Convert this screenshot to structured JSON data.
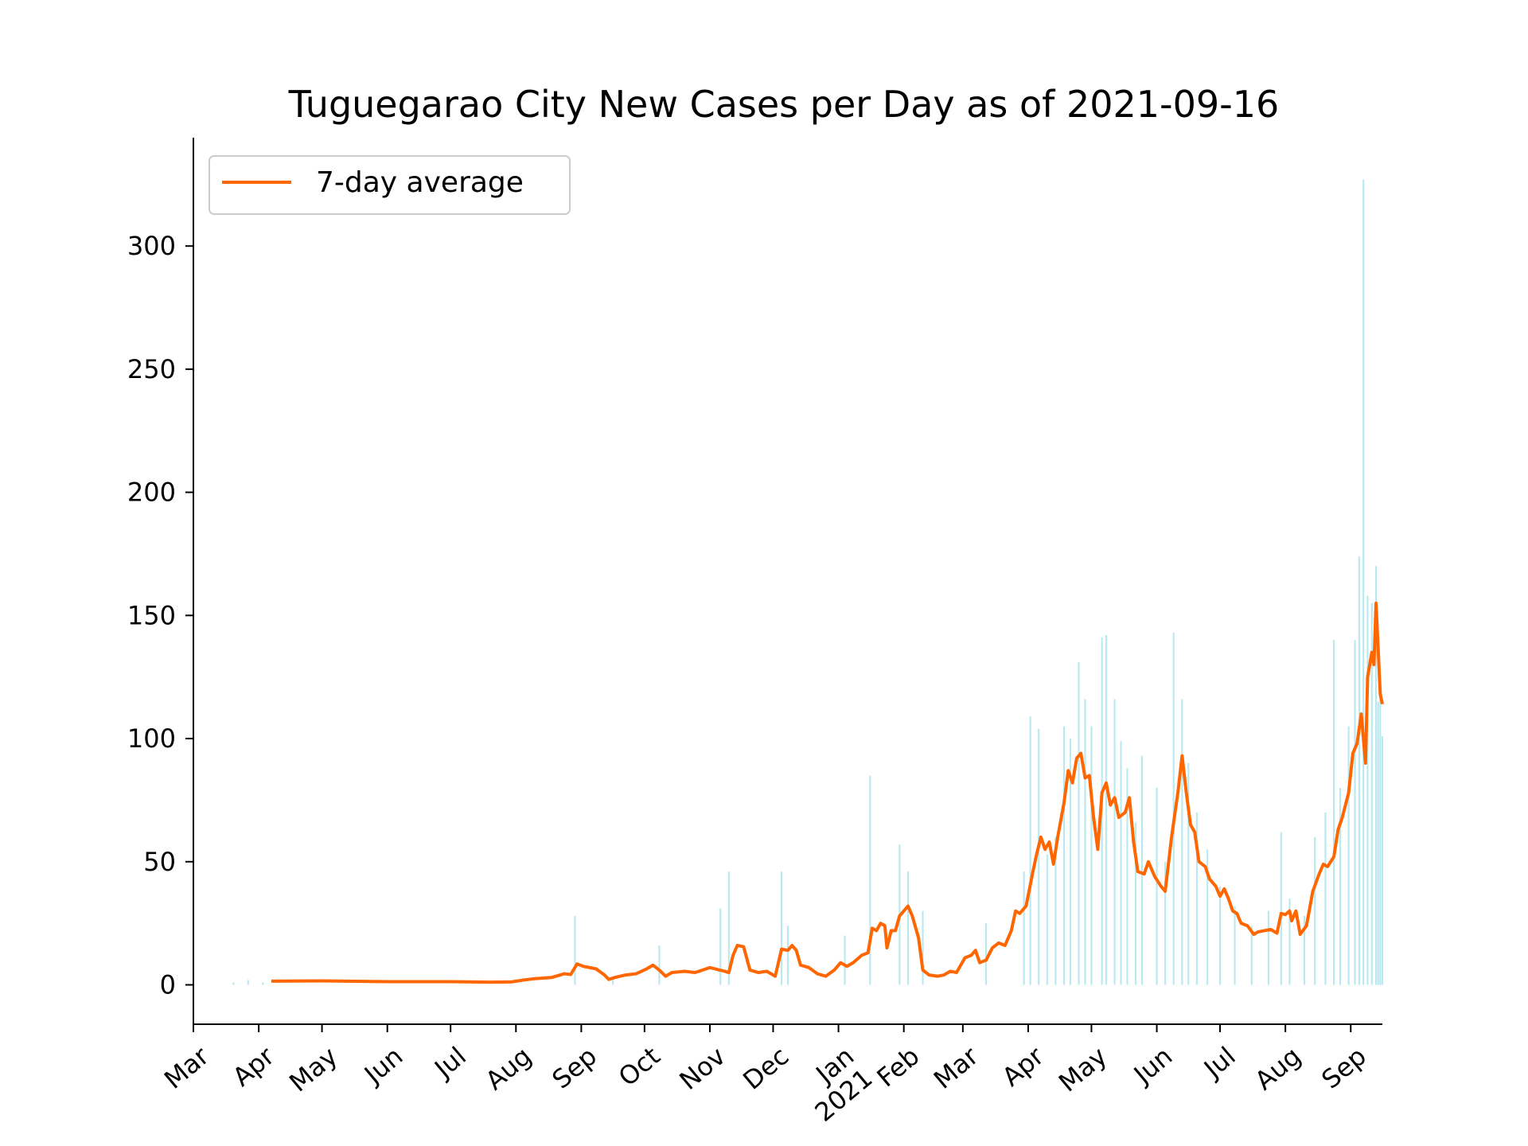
{
  "chart_data": {
    "type": "bar",
    "title": "Tuguegarao City New Cases per Day as of 2021-09-16",
    "xlabel": "",
    "ylabel": "",
    "ylim": [
      -16,
      344
    ],
    "xlim": [
      "2020-03-01",
      "2021-09-16"
    ],
    "y_ticks": [
      0,
      50,
      100,
      150,
      200,
      250,
      300
    ],
    "x_ticks": [
      {
        "date": "2020-03-01",
        "label": "Mar"
      },
      {
        "date": "2020-04-01",
        "label": "Apr"
      },
      {
        "date": "2020-05-01",
        "label": "May"
      },
      {
        "date": "2020-06-01",
        "label": "Jun"
      },
      {
        "date": "2020-07-01",
        "label": "Jul"
      },
      {
        "date": "2020-08-01",
        "label": "Aug"
      },
      {
        "date": "2020-09-01",
        "label": "Sep"
      },
      {
        "date": "2020-10-01",
        "label": "Oct"
      },
      {
        "date": "2020-11-01",
        "label": "Nov"
      },
      {
        "date": "2020-12-01",
        "label": "Dec"
      },
      {
        "date": "2021-01-01",
        "label": "Jan\n2021"
      },
      {
        "date": "2021-02-01",
        "label": "Feb"
      },
      {
        "date": "2021-03-01",
        "label": "Mar"
      },
      {
        "date": "2021-04-01",
        "label": "Apr"
      },
      {
        "date": "2021-05-01",
        "label": "May"
      },
      {
        "date": "2021-06-01",
        "label": "Jun"
      },
      {
        "date": "2021-07-01",
        "label": "Jul"
      },
      {
        "date": "2021-08-01",
        "label": "Aug"
      },
      {
        "date": "2021-09-01",
        "label": "Sep"
      }
    ],
    "legend": {
      "position": "top-left",
      "entries": [
        "7-day average"
      ]
    },
    "grid": false,
    "colors": {
      "bars": "#b9e9f0",
      "line": "#ff6600",
      "axis": "#000000"
    },
    "series": [
      {
        "name": "7-day average",
        "type": "line",
        "points": [
          [
            "2020-04-07",
            1.5
          ],
          [
            "2020-05-01",
            1.6
          ],
          [
            "2020-06-01",
            1.3
          ],
          [
            "2020-07-01",
            1.3
          ],
          [
            "2020-07-20",
            1.1
          ],
          [
            "2020-07-30",
            1.2
          ],
          [
            "2020-08-05",
            2.0
          ],
          [
            "2020-08-10",
            2.5
          ],
          [
            "2020-08-18",
            3.0
          ],
          [
            "2020-08-24",
            4.5
          ],
          [
            "2020-08-27",
            4.2
          ],
          [
            "2020-08-30",
            8.5
          ],
          [
            "2020-09-02",
            7.5
          ],
          [
            "2020-09-08",
            6.5
          ],
          [
            "2020-09-12",
            4.0
          ],
          [
            "2020-09-14",
            2.2
          ],
          [
            "2020-09-17",
            3.0
          ],
          [
            "2020-09-22",
            4.0
          ],
          [
            "2020-09-27",
            4.5
          ],
          [
            "2020-10-02",
            6.5
          ],
          [
            "2020-10-05",
            8.0
          ],
          [
            "2020-10-08",
            6.0
          ],
          [
            "2020-10-11",
            3.5
          ],
          [
            "2020-10-14",
            5.0
          ],
          [
            "2020-10-20",
            5.5
          ],
          [
            "2020-10-25",
            5.0
          ],
          [
            "2020-11-01",
            7.0
          ],
          [
            "2020-11-08",
            5.5
          ],
          [
            "2020-11-10",
            5.0
          ],
          [
            "2020-11-12",
            12.0
          ],
          [
            "2020-11-14",
            16.0
          ],
          [
            "2020-11-17",
            15.5
          ],
          [
            "2020-11-20",
            6.0
          ],
          [
            "2020-11-24",
            5.0
          ],
          [
            "2020-11-28",
            5.5
          ],
          [
            "2020-12-02",
            3.5
          ],
          [
            "2020-12-05",
            14.5
          ],
          [
            "2020-12-08",
            14.0
          ],
          [
            "2020-12-10",
            16.0
          ],
          [
            "2020-12-12",
            14.0
          ],
          [
            "2020-12-14",
            8.0
          ],
          [
            "2020-12-18",
            7.0
          ],
          [
            "2020-12-22",
            4.5
          ],
          [
            "2020-12-26",
            3.5
          ],
          [
            "2020-12-30",
            6.0
          ],
          [
            "2021-01-02",
            9.0
          ],
          [
            "2021-01-05",
            7.5
          ],
          [
            "2021-01-08",
            9.0
          ],
          [
            "2021-01-12",
            12.0
          ],
          [
            "2021-01-15",
            13.0
          ],
          [
            "2021-01-17",
            23.0
          ],
          [
            "2021-01-19",
            22.0
          ],
          [
            "2021-01-21",
            25.0
          ],
          [
            "2021-01-23",
            24.0
          ],
          [
            "2021-01-24",
            15.0
          ],
          [
            "2021-01-26",
            22.0
          ],
          [
            "2021-01-28",
            22.0
          ],
          [
            "2021-01-30",
            28.0
          ],
          [
            "2021-02-03",
            32.0
          ],
          [
            "2021-02-05",
            28.0
          ],
          [
            "2021-02-08",
            19.0
          ],
          [
            "2021-02-10",
            6.0
          ],
          [
            "2021-02-13",
            4.0
          ],
          [
            "2021-02-17",
            3.5
          ],
          [
            "2021-02-20",
            4.0
          ],
          [
            "2021-02-23",
            5.5
          ],
          [
            "2021-02-26",
            5.0
          ],
          [
            "2021-03-02",
            11.0
          ],
          [
            "2021-03-05",
            12.0
          ],
          [
            "2021-03-07",
            14.0
          ],
          [
            "2021-03-09",
            9.0
          ],
          [
            "2021-03-12",
            10.0
          ],
          [
            "2021-03-15",
            15.0
          ],
          [
            "2021-03-18",
            17.0
          ],
          [
            "2021-03-21",
            16.0
          ],
          [
            "2021-03-24",
            22.0
          ],
          [
            "2021-03-26",
            30.0
          ],
          [
            "2021-03-28",
            29.0
          ],
          [
            "2021-03-31",
            32.0
          ],
          [
            "2021-04-03",
            45.0
          ],
          [
            "2021-04-05",
            53.0
          ],
          [
            "2021-04-07",
            60.0
          ],
          [
            "2021-04-09",
            55.0
          ],
          [
            "2021-04-11",
            58.0
          ],
          [
            "2021-04-13",
            49.0
          ],
          [
            "2021-04-15",
            60.0
          ],
          [
            "2021-04-18",
            74.0
          ],
          [
            "2021-04-20",
            87.0
          ],
          [
            "2021-04-22",
            82.0
          ],
          [
            "2021-04-24",
            92.0
          ],
          [
            "2021-04-26",
            94.0
          ],
          [
            "2021-04-28",
            84.0
          ],
          [
            "2021-04-30",
            85.0
          ],
          [
            "2021-05-02",
            68.0
          ],
          [
            "2021-05-04",
            55.0
          ],
          [
            "2021-05-06",
            78.0
          ],
          [
            "2021-05-08",
            82.0
          ],
          [
            "2021-05-10",
            73.0
          ],
          [
            "2021-05-12",
            76.0
          ],
          [
            "2021-05-14",
            68.0
          ],
          [
            "2021-05-17",
            70.0
          ],
          [
            "2021-05-19",
            76.0
          ],
          [
            "2021-05-21",
            58.0
          ],
          [
            "2021-05-23",
            46.0
          ],
          [
            "2021-05-26",
            45.0
          ],
          [
            "2021-05-28",
            50.0
          ],
          [
            "2021-05-31",
            44.0
          ],
          [
            "2021-06-03",
            40.0
          ],
          [
            "2021-06-05",
            38.0
          ],
          [
            "2021-06-08",
            60.0
          ],
          [
            "2021-06-11",
            78.0
          ],
          [
            "2021-06-13",
            93.0
          ],
          [
            "2021-06-15",
            78.0
          ],
          [
            "2021-06-17",
            65.0
          ],
          [
            "2021-06-19",
            62.0
          ],
          [
            "2021-06-21",
            50.0
          ],
          [
            "2021-06-24",
            48.0
          ],
          [
            "2021-06-26",
            43.0
          ],
          [
            "2021-06-29",
            40.0
          ],
          [
            "2021-07-01",
            36.0
          ],
          [
            "2021-07-03",
            39.0
          ],
          [
            "2021-07-05",
            35.0
          ],
          [
            "2021-07-07",
            30.0
          ],
          [
            "2021-07-09",
            29.0
          ],
          [
            "2021-07-11",
            25.0
          ],
          [
            "2021-07-14",
            24.0
          ],
          [
            "2021-07-17",
            20.5
          ],
          [
            "2021-07-19",
            21.5
          ],
          [
            "2021-07-22",
            22.0
          ],
          [
            "2021-07-25",
            22.5
          ],
          [
            "2021-07-28",
            21.0
          ],
          [
            "2021-07-30",
            29.0
          ],
          [
            "2021-08-01",
            28.5
          ],
          [
            "2021-08-03",
            30.0
          ],
          [
            "2021-08-04",
            26.0
          ],
          [
            "2021-08-06",
            30.0
          ],
          [
            "2021-08-08",
            20.5
          ],
          [
            "2021-08-11",
            24.0
          ],
          [
            "2021-08-14",
            38.0
          ],
          [
            "2021-08-17",
            45.0
          ],
          [
            "2021-08-19",
            49.0
          ],
          [
            "2021-08-21",
            48.0
          ],
          [
            "2021-08-24",
            52.0
          ],
          [
            "2021-08-26",
            63.0
          ],
          [
            "2021-08-28",
            68.0
          ],
          [
            "2021-08-31",
            78.0
          ],
          [
            "2021-09-02",
            94.0
          ],
          [
            "2021-09-04",
            98.0
          ],
          [
            "2021-09-06",
            110.0
          ],
          [
            "2021-09-08",
            90.0
          ],
          [
            "2021-09-09",
            125.0
          ],
          [
            "2021-09-11",
            135.0
          ],
          [
            "2021-09-12",
            130.0
          ],
          [
            "2021-09-13",
            155.0
          ],
          [
            "2021-09-15",
            118.0
          ],
          [
            "2021-09-16",
            114.0
          ]
        ]
      },
      {
        "name": "",
        "type": "bar",
        "note": "daily new cases (unlabeled bars)",
        "points": [
          [
            "2020-03-20",
            1
          ],
          [
            "2020-03-27",
            2
          ],
          [
            "2020-04-03",
            1
          ],
          [
            "2020-08-29",
            28
          ],
          [
            "2020-09-16",
            3
          ],
          [
            "2020-10-08",
            16
          ],
          [
            "2020-11-06",
            31
          ],
          [
            "2020-11-10",
            46
          ],
          [
            "2020-12-05",
            46
          ],
          [
            "2020-12-08",
            24
          ],
          [
            "2021-01-04",
            20
          ],
          [
            "2021-01-16",
            85
          ],
          [
            "2021-01-30",
            57
          ],
          [
            "2021-02-03",
            46
          ],
          [
            "2021-02-10",
            30
          ],
          [
            "2021-03-12",
            25
          ],
          [
            "2021-03-30",
            46
          ],
          [
            "2021-04-02",
            109
          ],
          [
            "2021-04-06",
            104
          ],
          [
            "2021-04-10",
            53
          ],
          [
            "2021-04-14",
            60
          ],
          [
            "2021-04-18",
            105
          ],
          [
            "2021-04-21",
            100
          ],
          [
            "2021-04-25",
            131
          ],
          [
            "2021-04-28",
            116
          ],
          [
            "2021-05-01",
            105
          ],
          [
            "2021-05-06",
            141
          ],
          [
            "2021-05-08",
            142
          ],
          [
            "2021-05-12",
            116
          ],
          [
            "2021-05-15",
            99
          ],
          [
            "2021-05-18",
            88
          ],
          [
            "2021-05-22",
            66
          ],
          [
            "2021-05-25",
            93
          ],
          [
            "2021-06-01",
            80
          ],
          [
            "2021-06-05",
            50
          ],
          [
            "2021-06-09",
            143
          ],
          [
            "2021-06-13",
            116
          ],
          [
            "2021-06-16",
            90
          ],
          [
            "2021-06-20",
            70
          ],
          [
            "2021-06-25",
            55
          ],
          [
            "2021-07-01",
            40
          ],
          [
            "2021-07-08",
            32
          ],
          [
            "2021-07-16",
            24
          ],
          [
            "2021-07-24",
            30
          ],
          [
            "2021-07-30",
            62
          ],
          [
            "2021-08-03",
            35
          ],
          [
            "2021-08-10",
            28
          ],
          [
            "2021-08-15",
            60
          ],
          [
            "2021-08-20",
            70
          ],
          [
            "2021-08-24",
            140
          ],
          [
            "2021-08-27",
            80
          ],
          [
            "2021-08-31",
            105
          ],
          [
            "2021-09-03",
            140
          ],
          [
            "2021-09-05",
            174
          ],
          [
            "2021-09-07",
            327
          ],
          [
            "2021-09-09",
            158
          ],
          [
            "2021-09-11",
            155
          ],
          [
            "2021-09-13",
            170
          ],
          [
            "2021-09-14",
            115
          ],
          [
            "2021-09-15",
            119
          ],
          [
            "2021-09-16",
            101
          ]
        ]
      }
    ]
  }
}
